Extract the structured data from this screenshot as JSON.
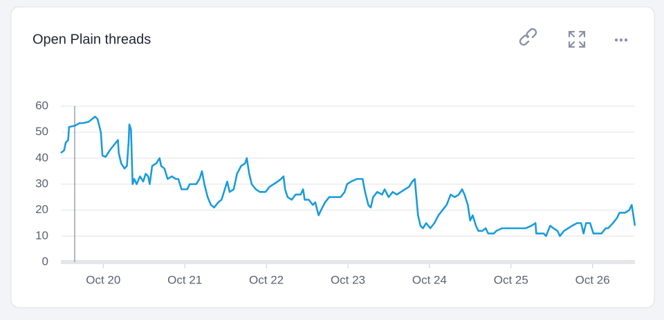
{
  "chart_data": {
    "type": "line",
    "title": "Open Plain threads",
    "color": "#1a9bdb",
    "grid": true,
    "xlim": [
      19.48,
      26.52
    ],
    "xticks": [
      {
        "value": 20,
        "label": "Oct 20"
      },
      {
        "value": 21,
        "label": "Oct 21"
      },
      {
        "value": 22,
        "label": "Oct 22"
      },
      {
        "value": 23,
        "label": "Oct 23"
      },
      {
        "value": 24,
        "label": "Oct 24"
      },
      {
        "value": 25,
        "label": "Oct 25"
      },
      {
        "value": 26,
        "label": "Oct 26"
      }
    ],
    "ylim": [
      0,
      60
    ],
    "yticks": [
      0,
      10,
      20,
      30,
      40,
      50,
      60
    ],
    "x": [
      19.48,
      19.52,
      19.54,
      19.57,
      19.58,
      19.65,
      19.71,
      19.75,
      19.82,
      19.9,
      19.93,
      19.97,
      19.99,
      20.03,
      20.08,
      20.13,
      20.18,
      20.19,
      20.22,
      20.26,
      20.29,
      20.31,
      20.32,
      20.34,
      20.36,
      20.38,
      20.41,
      20.45,
      20.49,
      20.52,
      20.55,
      20.57,
      20.6,
      20.65,
      20.69,
      20.71,
      20.75,
      20.79,
      20.84,
      20.89,
      20.92,
      20.96,
      21.03,
      21.06,
      21.14,
      21.18,
      21.21,
      21.24,
      21.28,
      21.32,
      21.36,
      21.41,
      21.45,
      21.49,
      21.52,
      21.55,
      21.6,
      21.64,
      21.69,
      21.74,
      21.76,
      21.79,
      21.82,
      21.87,
      21.92,
      21.99,
      22.04,
      22.09,
      22.14,
      22.18,
      22.21,
      22.23,
      22.26,
      22.31,
      22.36,
      22.42,
      22.45,
      22.47,
      22.52,
      22.57,
      22.6,
      22.64,
      22.67,
      22.72,
      22.77,
      22.84,
      22.91,
      22.96,
      22.99,
      23.04,
      23.11,
      23.18,
      23.21,
      23.25,
      23.28,
      23.31,
      23.36,
      23.42,
      23.45,
      23.5,
      23.55,
      23.6,
      23.65,
      23.7,
      23.75,
      23.79,
      23.82,
      23.84,
      23.86,
      23.89,
      23.92,
      23.96,
      24.01,
      24.06,
      24.11,
      24.16,
      24.21,
      24.26,
      24.31,
      24.36,
      24.4,
      24.43,
      24.47,
      24.5,
      24.53,
      24.57,
      24.6,
      24.65,
      24.69,
      24.72,
      24.79,
      24.82,
      24.89,
      25.01,
      25.18,
      25.25,
      25.3,
      25.31,
      25.4,
      25.43,
      25.48,
      25.52,
      25.57,
      25.6,
      25.65,
      25.7,
      25.75,
      25.81,
      25.86,
      25.89,
      25.92,
      25.97,
      26.01,
      26.11,
      26.16,
      26.19,
      26.25,
      26.3,
      26.33,
      26.4,
      26.45,
      26.48,
      26.52
    ],
    "values": [
      42,
      43,
      46,
      47,
      52,
      52.5,
      53.5,
      53.5,
      54,
      56,
      55,
      50,
      41,
      40.5,
      43,
      45,
      47,
      42,
      38,
      36,
      37,
      46,
      53,
      51,
      30,
      32,
      30,
      33,
      31,
      34,
      33,
      30,
      37,
      38,
      40,
      37,
      36,
      32,
      33,
      32,
      32,
      28,
      28,
      30,
      30,
      32,
      35,
      30,
      25,
      22,
      21,
      23,
      24,
      28,
      31,
      27,
      28,
      34,
      37,
      38,
      40,
      34,
      30,
      28,
      27,
      27,
      29,
      30,
      31,
      32,
      33,
      28,
      25,
      24,
      26,
      26,
      28,
      24,
      24,
      22,
      23,
      18,
      20,
      23,
      25,
      25,
      25,
      27,
      30,
      31,
      32,
      32,
      27,
      22,
      21,
      25,
      27,
      26,
      28,
      25,
      27,
      26,
      27,
      28,
      29,
      31,
      32,
      25,
      18,
      14,
      13,
      15,
      13,
      15,
      18,
      20,
      22,
      26,
      25,
      26,
      28,
      26,
      22,
      16,
      18,
      14,
      12,
      12,
      13,
      11,
      11,
      12,
      13,
      13,
      13,
      14,
      15,
      11,
      11,
      10,
      14,
      13,
      12,
      10,
      12,
      13,
      14,
      15,
      15,
      11,
      15,
      15,
      11,
      11,
      13,
      13,
      15,
      17,
      19,
      19,
      20,
      22,
      14
    ]
  }
}
